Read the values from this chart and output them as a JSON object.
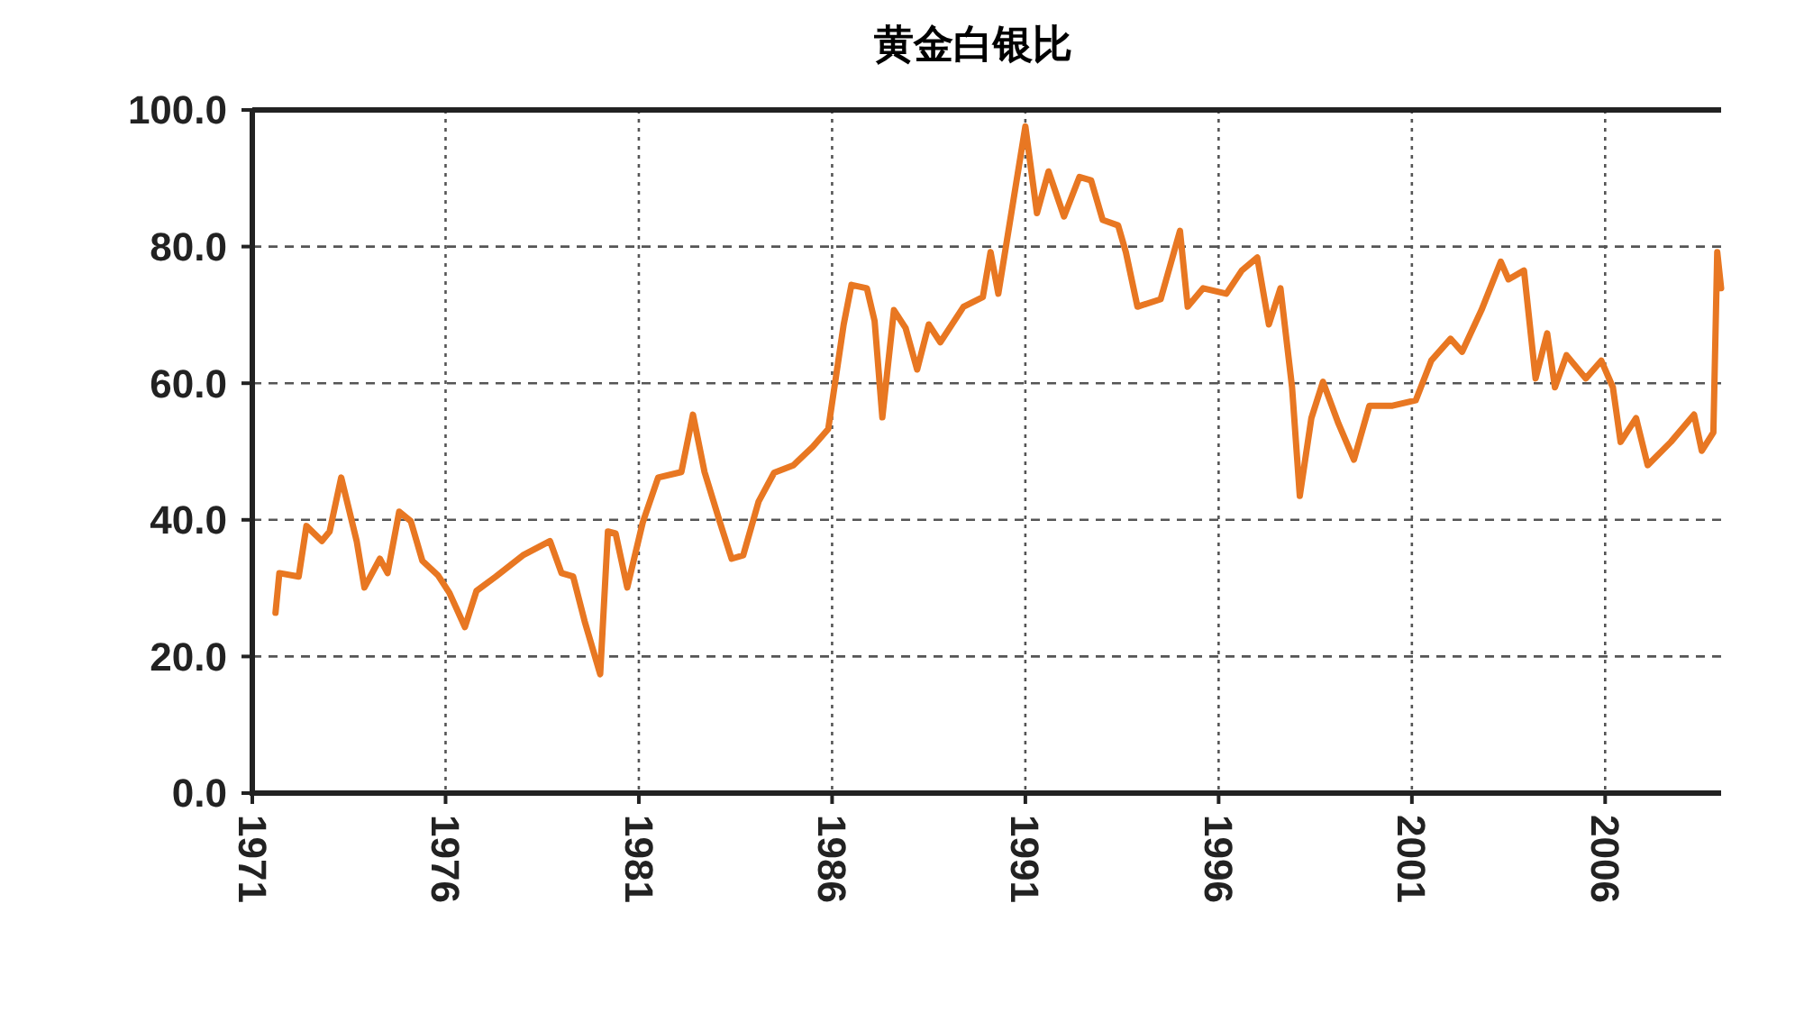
{
  "chart_data": {
    "type": "line",
    "title": "黄金白银比",
    "color": "#e87722",
    "grid": true,
    "line_style": "solid",
    "marker": "none",
    "xlim": [
      1971,
      2009
    ],
    "xticks": [
      1971,
      1976,
      1981,
      1986,
      1991,
      1996,
      2001,
      2006
    ],
    "ylim": [
      0,
      100
    ],
    "yticks": [
      {
        "value": 0,
        "label": "0.0"
      },
      {
        "value": 20,
        "label": "20.0"
      },
      {
        "value": 40,
        "label": "40.0"
      },
      {
        "value": 60,
        "label": "60.0"
      },
      {
        "value": 80,
        "label": "80.0"
      },
      {
        "value": 100,
        "label": "100.0"
      }
    ],
    "x": [
      1971.6,
      1971.7,
      1972.2,
      1972.4,
      1972.8,
      1973.0,
      1973.3,
      1973.7,
      1973.9,
      1974.3,
      1974.5,
      1974.8,
      1975.1,
      1975.4,
      1975.8,
      1976.1,
      1976.5,
      1976.8,
      1977.3,
      1978.0,
      1978.7,
      1979.0,
      1979.3,
      1979.6,
      1980.0,
      1980.2,
      1980.4,
      1980.7,
      1981.1,
      1981.5,
      1982.1,
      1982.4,
      1982.7,
      1983.1,
      1983.4,
      1983.7,
      1984.1,
      1984.5,
      1985.0,
      1985.5,
      1985.9,
      1986.3,
      1986.5,
      1986.9,
      1987.1,
      1987.3,
      1987.6,
      1987.9,
      1988.2,
      1988.5,
      1988.8,
      1989.4,
      1989.9,
      1990.1,
      1990.3,
      1990.7,
      1991.0,
      1991.3,
      1991.6,
      1992.0,
      1992.4,
      1992.7,
      1993.0,
      1993.4,
      1993.6,
      1993.9,
      1994.5,
      1995.0,
      1995.2,
      1995.6,
      1996.2,
      1996.6,
      1997.0,
      1997.3,
      1997.6,
      1997.9,
      1998.1,
      1998.4,
      1998.7,
      1999.1,
      1999.5,
      1999.9,
      2000.5,
      2001.1,
      2001.5,
      2002.0,
      2002.3,
      2002.8,
      2003.3,
      2003.5,
      2003.9,
      2004.2,
      2004.5,
      2004.7,
      2005.0,
      2005.5,
      2005.9,
      2006.2,
      2006.4,
      2006.8,
      2007.1,
      2007.7,
      2008.3,
      2008.5,
      2008.8,
      2008.9,
      2009.0
    ],
    "values": [
      26.4,
      32.2,
      31.7,
      39.1,
      36.9,
      38.3,
      46.2,
      36.9,
      30.1,
      34.3,
      32.2,
      41.2,
      39.8,
      34.0,
      31.9,
      29.3,
      24.3,
      29.6,
      31.7,
      34.8,
      36.9,
      32.2,
      31.7,
      25.1,
      17.4,
      38.3,
      38.0,
      30.1,
      39.6,
      46.2,
      47.0,
      55.4,
      47.0,
      39.6,
      34.3,
      34.8,
      42.7,
      46.9,
      48.0,
      50.7,
      53.3,
      68.6,
      74.4,
      73.9,
      69.1,
      55.0,
      70.7,
      68.1,
      62.0,
      68.6,
      66.0,
      71.2,
      72.6,
      79.2,
      73.1,
      87.1,
      97.6,
      84.9,
      91.0,
      84.4,
      90.2,
      89.7,
      83.9,
      83.1,
      79.2,
      71.2,
      72.3,
      82.3,
      71.2,
      73.9,
      73.1,
      76.5,
      78.4,
      68.6,
      73.9,
      59.4,
      43.5,
      54.9,
      60.2,
      54.1,
      48.8,
      56.7,
      56.7,
      57.5,
      63.3,
      66.5,
      64.6,
      70.7,
      77.8,
      75.2,
      76.5,
      60.7,
      67.3,
      59.4,
      64.1,
      60.7,
      63.3,
      59.4,
      51.4,
      54.9,
      48.0,
      51.4,
      55.4,
      50.1,
      52.8,
      79.2,
      73.9
    ]
  }
}
